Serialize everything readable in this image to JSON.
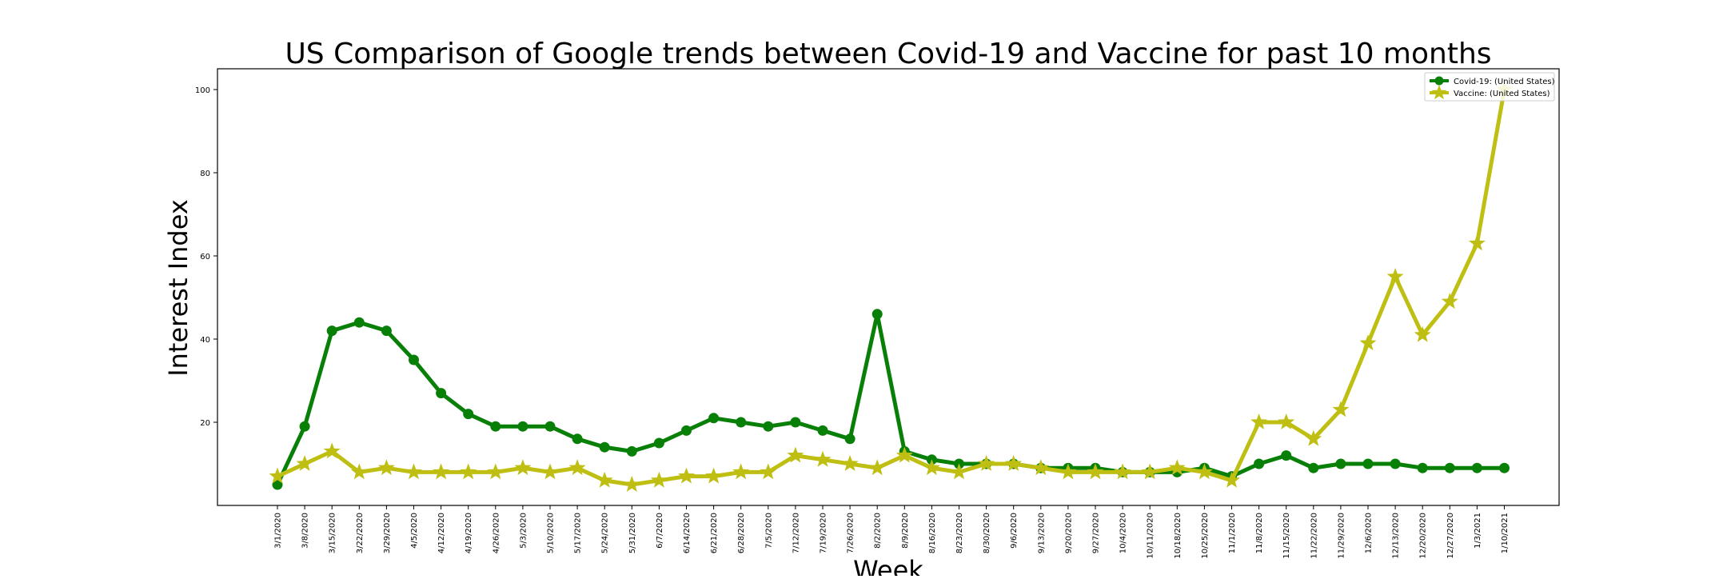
{
  "chart_data": {
    "type": "line",
    "title": "US Comparison of Google trends between Covid-19 and Vaccine for past 10 months",
    "xlabel": "Week",
    "ylabel": "Interest Index",
    "ylim": [
      0,
      105
    ],
    "yticks": [
      20,
      40,
      60,
      80,
      100
    ],
    "grid": false,
    "legend_position": "top-right",
    "categories": [
      "3/1/2020",
      "3/8/2020",
      "3/15/2020",
      "3/22/2020",
      "3/29/2020",
      "4/5/2020",
      "4/12/2020",
      "4/19/2020",
      "4/26/2020",
      "5/3/2020",
      "5/10/2020",
      "5/17/2020",
      "5/24/2020",
      "5/31/2020",
      "6/7/2020",
      "6/14/2020",
      "6/21/2020",
      "6/28/2020",
      "7/5/2020",
      "7/12/2020",
      "7/19/2020",
      "7/26/2020",
      "8/2/2020",
      "8/9/2020",
      "8/16/2020",
      "8/23/2020",
      "8/30/2020",
      "9/6/2020",
      "9/13/2020",
      "9/20/2020",
      "9/27/2020",
      "10/4/2020",
      "10/11/2020",
      "10/18/2020",
      "10/25/2020",
      "11/1/2020",
      "11/8/2020",
      "11/15/2020",
      "11/22/2020",
      "11/29/2020",
      "12/6/2020",
      "12/13/2020",
      "12/20/2020",
      "12/27/2020",
      "1/3/2021",
      "1/10/2021"
    ],
    "series": [
      {
        "name": "Covid-19: (United States)",
        "color": "#088008",
        "marker": "circle",
        "values": [
          5,
          19,
          42,
          44,
          42,
          35,
          27,
          22,
          19,
          19,
          19,
          16,
          14,
          13,
          15,
          18,
          21,
          20,
          19,
          20,
          18,
          16,
          46,
          13,
          11,
          10,
          10,
          10,
          9,
          9,
          9,
          8,
          8,
          8,
          9,
          7,
          10,
          12,
          9,
          10,
          10,
          10,
          9,
          9,
          9,
          9
        ]
      },
      {
        "name": "Vaccine: (United States)",
        "color": "#bfbf13",
        "marker": "star",
        "values": [
          7,
          10,
          13,
          8,
          9,
          8,
          8,
          8,
          8,
          9,
          8,
          9,
          6,
          5,
          6,
          7,
          7,
          8,
          8,
          12,
          11,
          10,
          9,
          12,
          9,
          8,
          10,
          10,
          9,
          8,
          8,
          8,
          8,
          9,
          8,
          6,
          20,
          20,
          16,
          23,
          39,
          55,
          41,
          49,
          63,
          100
        ]
      }
    ]
  }
}
